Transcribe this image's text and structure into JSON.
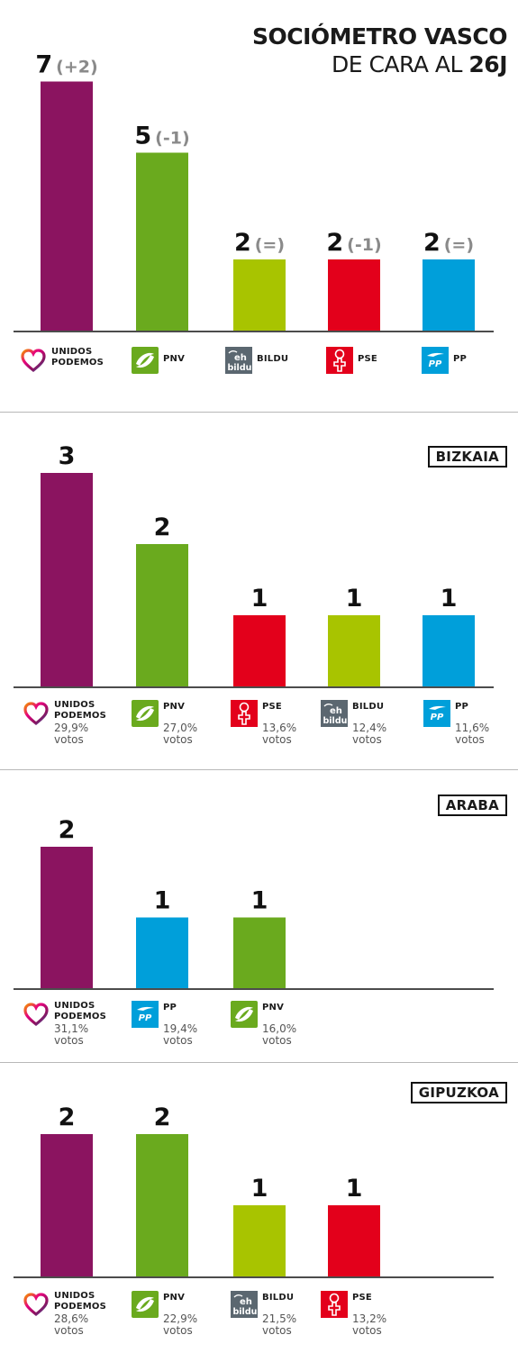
{
  "title": {
    "line1": "SOCIÓMETRO VASCO",
    "line2_prefix": "DE CARA AL ",
    "line2_bold": "26J"
  },
  "parties": {
    "up": {
      "name_lines": [
        "UNIDOS",
        "PODEMOS"
      ],
      "color": "#8B1460",
      "icon": "heart-rainbow-icon"
    },
    "pnv": {
      "name_lines": [
        "PNV"
      ],
      "color": "#6AAA1E",
      "icon": "pnv-leaf-icon"
    },
    "bildu": {
      "name_lines": [
        "BILDU"
      ],
      "color": "#A8C400",
      "icon": "eh-bildu-icon",
      "logo_text": [
        "eh",
        "bildu"
      ]
    },
    "pse": {
      "name_lines": [
        "PSE"
      ],
      "color": "#E3001B",
      "icon": "pse-rose-icon"
    },
    "pp": {
      "name_lines": [
        "PP"
      ],
      "color": "#009FDA",
      "icon": "pp-gull-icon",
      "logo_text": "PP"
    }
  },
  "votos_label": "votos",
  "chart_data": [
    {
      "type": "bar",
      "region": "",
      "categories": [
        "UNIDOS PODEMOS",
        "PNV",
        "BILDU",
        "PSE",
        "PP"
      ],
      "party_keys": [
        "up",
        "pnv",
        "bildu",
        "pse",
        "pp"
      ],
      "values": [
        7,
        5,
        2,
        2,
        2
      ],
      "changes": [
        "(+2)",
        "(-1)",
        "(=)",
        "(-1)",
        "(=)"
      ],
      "vote_pct": [],
      "ylim": [
        0,
        7
      ]
    },
    {
      "type": "bar",
      "region": "BIZKAIA",
      "categories": [
        "UNIDOS PODEMOS",
        "PNV",
        "PSE",
        "BILDU",
        "PP"
      ],
      "party_keys": [
        "up",
        "pnv",
        "pse",
        "bildu",
        "pp"
      ],
      "bar_colors": [
        "#8B1460",
        "#6AAA1E",
        "#E3001B",
        "#A8C400",
        "#009FDA"
      ],
      "values": [
        3,
        2,
        1,
        1,
        1
      ],
      "changes": [],
      "vote_pct": [
        "29,9%",
        "27,0%",
        "13,6%",
        "12,4%",
        "11,6%"
      ],
      "ylim": [
        0,
        3
      ]
    },
    {
      "type": "bar",
      "region": "ARABA",
      "categories": [
        "UNIDOS PODEMOS",
        "PP",
        "PNV"
      ],
      "party_keys": [
        "up",
        "pp",
        "pnv"
      ],
      "values": [
        2,
        1,
        1
      ],
      "changes": [],
      "vote_pct": [
        "31,1%",
        "19,4%",
        "16,0%"
      ],
      "ylim": [
        0,
        2
      ]
    },
    {
      "type": "bar",
      "region": "GIPUZKOA",
      "categories": [
        "UNIDOS PODEMOS",
        "PNV",
        "BILDU",
        "PSE"
      ],
      "party_keys": [
        "up",
        "pnv",
        "bildu",
        "pse"
      ],
      "values": [
        2,
        2,
        1,
        1
      ],
      "changes": [],
      "vote_pct": [
        "28,6%",
        "22,9%",
        "21,5%",
        "13,2%"
      ],
      "ylim": [
        0,
        2
      ]
    }
  ]
}
